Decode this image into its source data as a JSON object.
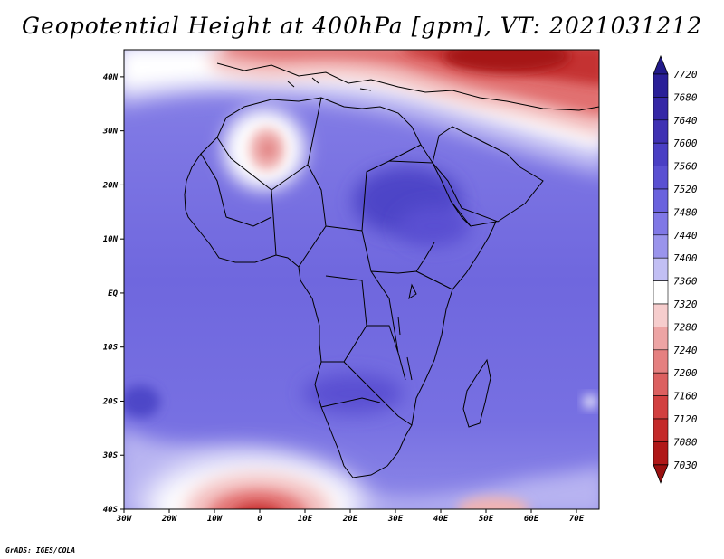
{
  "title": "Geopotential Height at 400hPa [gpm], VT: 2021031212",
  "credit": "GrADS: IGES/COLA",
  "map": {
    "region": "Africa",
    "lon_range": [
      -30,
      75
    ],
    "lat_range": [
      -40,
      45
    ],
    "lat_ticks": [
      "40N",
      "30N",
      "20N",
      "10N",
      "EQ",
      "10S",
      "20S",
      "30S",
      "40S"
    ],
    "lat_values": [
      40,
      30,
      20,
      10,
      0,
      -10,
      -20,
      -30,
      -40
    ],
    "lon_ticks": [
      "30W",
      "20W",
      "10W",
      "0",
      "10E",
      "20E",
      "30E",
      "40E",
      "50E",
      "60E",
      "70E"
    ],
    "lon_values": [
      -30,
      -20,
      -10,
      0,
      10,
      20,
      30,
      40,
      50,
      60,
      70
    ],
    "field": "Geopotential Height",
    "level": "400hPa",
    "units": "gpm",
    "valid_time": "2021031212"
  },
  "colorbar": {
    "levels": [
      "7720",
      "7680",
      "7640",
      "7600",
      "7560",
      "7520",
      "7480",
      "7440",
      "7400",
      "7360",
      "7320",
      "7280",
      "7240",
      "7200",
      "7160",
      "7120",
      "7080",
      "7030"
    ],
    "colors": [
      "#2a1f98",
      "#3527a6",
      "#3f31b3",
      "#4a3fc4",
      "#5a50d2",
      "#6a62de",
      "#8078e6",
      "#9a94ec",
      "#c2bff4",
      "#ffffff",
      "#f6cdcd",
      "#eda4a4",
      "#e58080",
      "#dc6060",
      "#d24040",
      "#c42a2a",
      "#b01818"
    ],
    "top_arrow_color": "#221a8a",
    "bottom_arrow_color": "#9a1010"
  }
}
